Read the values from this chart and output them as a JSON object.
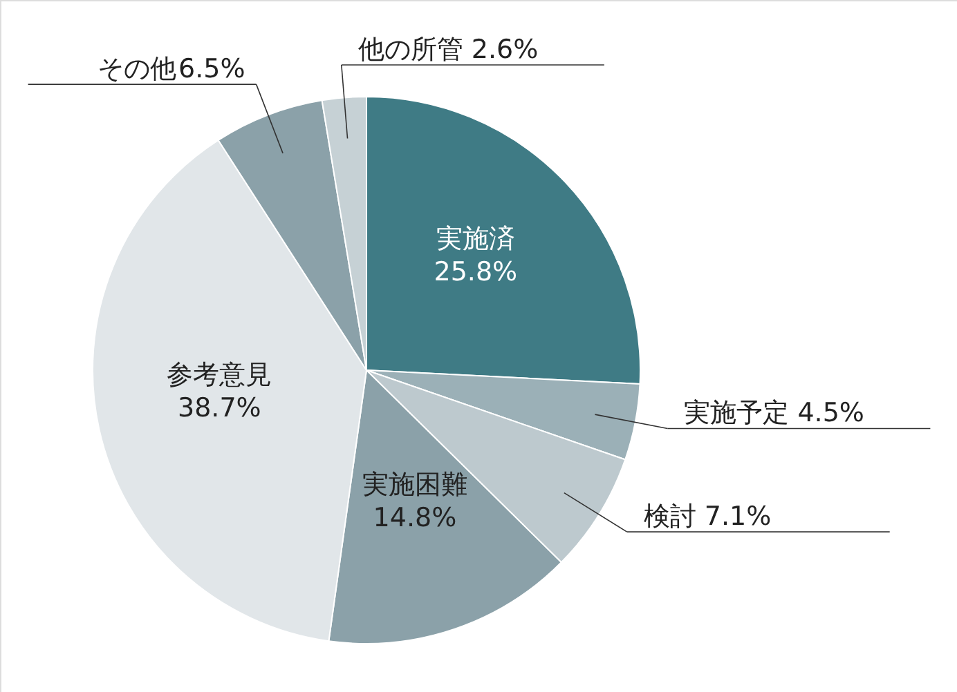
{
  "chart_data": {
    "type": "pie",
    "categories": [
      "実施済",
      "実施予定",
      "検討",
      "実施困難",
      "参考意見",
      "その他",
      "他の所管"
    ],
    "values": [
      25.8,
      4.5,
      7.1,
      14.8,
      38.7,
      6.5,
      2.6
    ],
    "colors": [
      "#3f7b85",
      "#9bb0b7",
      "#bdc9ce",
      "#8ba1a9",
      "#e1e6e9",
      "#8ba1a9",
      "#c6d1d5"
    ],
    "value_labels": [
      "25.8%",
      "4.5%",
      "7.1%",
      "14.8%",
      "38.7%",
      "6.5%",
      "2.6%"
    ]
  }
}
